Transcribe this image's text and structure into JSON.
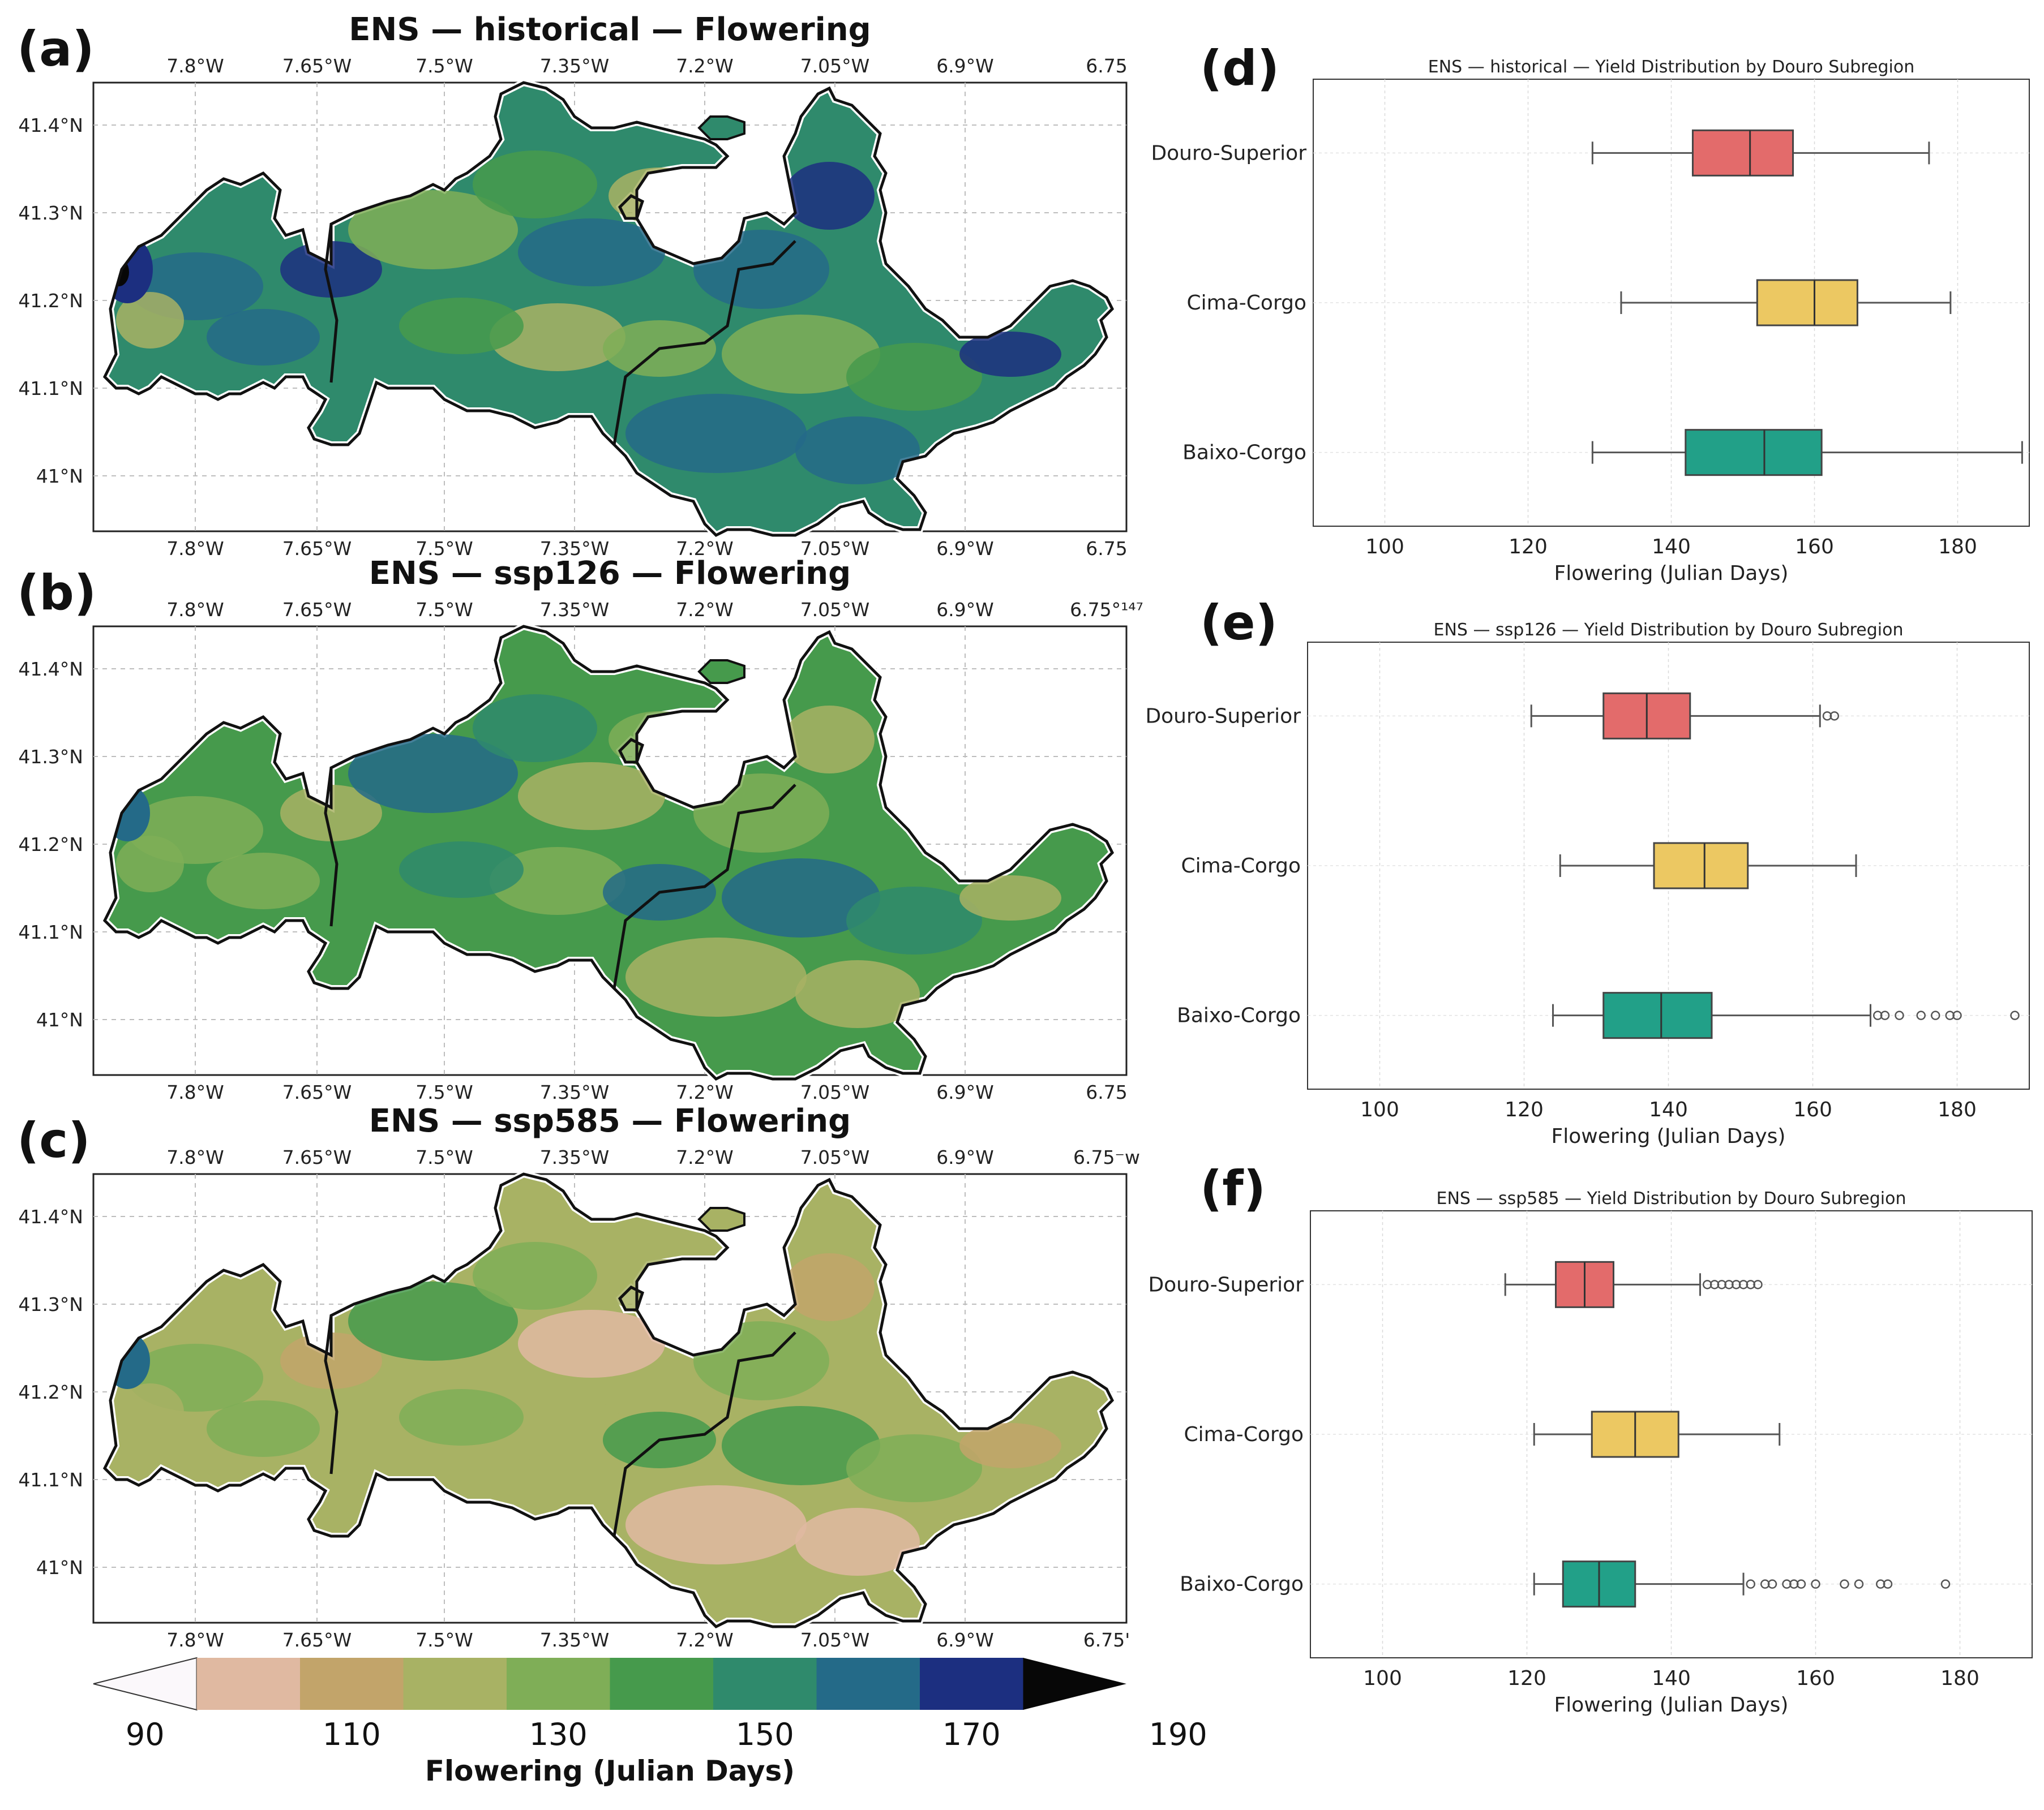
{
  "colors": {
    "c90_100": "#fbf8fb",
    "c100_110": "#e0b9a1",
    "c110_120": "#c2a46a",
    "c120_130": "#a8b264",
    "c130_140": "#7fae57",
    "c140_150": "#469a4c",
    "c150_160": "#2f8a6c",
    "c160_170": "#246a88",
    "c170_180": "#1c2f80",
    "c180_190": "#070707",
    "douro_superior": "#e36b6b",
    "cima_corgo": "#ecc862",
    "baixo_corgo": "#22a088"
  },
  "maps": [
    {
      "letter": "(a)",
      "title": "ENS — historical — Flowering",
      "top_ticks": [
        "7.8°W",
        "7.65°W",
        "7.5°W",
        "7.35°W",
        "7.2°W",
        "7.05°W",
        "6.9°W",
        "6.75"
      ],
      "bottom_ticks": [
        "7.8°W",
        "7.65°W",
        "7.5°W",
        "7.35°W",
        "7.2°W",
        "7.05°W",
        "6.9°W",
        "6.75"
      ],
      "lat_ticks": [
        "41.4°N",
        "41.3°N",
        "41.2°N",
        "41.1°N",
        "41°N"
      ],
      "scenario": "historical"
    },
    {
      "letter": "(b)",
      "title": "ENS — ssp126 — Flowering",
      "top_ticks": [
        "7.8°W",
        "7.65°W",
        "7.5°W",
        "7.35°W",
        "7.2°W",
        "7.05°W",
        "6.9°W",
        "6.75°¹⁴⁷"
      ],
      "bottom_ticks": [
        "7.8°W",
        "7.65°W",
        "7.5°W",
        "7.35°W",
        "7.2°W",
        "7.05°W",
        "6.9°W",
        "6.75"
      ],
      "lat_ticks": [
        "41.4°N",
        "41.3°N",
        "41.2°N",
        "41.1°N",
        "41°N"
      ],
      "scenario": "ssp126"
    },
    {
      "letter": "(c)",
      "title": "ENS — ssp585 — Flowering",
      "top_ticks": [
        "7.8°W",
        "7.65°W",
        "7.5°W",
        "7.35°W",
        "7.2°W",
        "7.05°W",
        "6.9°W",
        "6.75⁻w"
      ],
      "bottom_ticks": [
        "7.8°W",
        "7.65°W",
        "7.5°W",
        "7.35°W",
        "7.2°W",
        "7.05°W",
        "6.9°W",
        "6.75'"
      ],
      "lat_ticks": [
        "41.4°N",
        "41.3°N",
        "41.2°N",
        "41.1°N",
        "41°N"
      ],
      "scenario": "ssp585"
    }
  ],
  "colorbar": {
    "ticks": [
      "90",
      "110",
      "130",
      "150",
      "170",
      "190"
    ],
    "label": "Flowering (Julian Days)"
  },
  "chart_data": [
    {
      "type": "box",
      "letter": "(d)",
      "title": "ENS — historical — Yield Distribution by Douro Subregion",
      "xlabel": "Flowering (Julian Days)",
      "xlim": [
        90,
        190
      ],
      "xticks": [
        "100",
        "120",
        "140",
        "160",
        "180"
      ],
      "categories": [
        "Douro-Superior",
        "Cima-Corgo",
        "Baixo-Corgo"
      ],
      "boxes": [
        {
          "name": "Douro-Superior",
          "whislo": 129,
          "q1": 143,
          "med": 151,
          "q3": 157,
          "whishi": 176,
          "fliers": []
        },
        {
          "name": "Cima-Corgo",
          "whislo": 133,
          "q1": 152,
          "med": 160,
          "q3": 166,
          "whishi": 179,
          "fliers": []
        },
        {
          "name": "Baixo-Corgo",
          "whislo": 129,
          "q1": 142,
          "med": 153,
          "q3": 161,
          "whishi": 189,
          "fliers": []
        }
      ]
    },
    {
      "type": "box",
      "letter": "(e)",
      "title": "ENS — ssp126 — Yield Distribution by Douro Subregion",
      "xlabel": "Flowering (Julian Days)",
      "xlim": [
        90,
        190
      ],
      "xticks": [
        "100",
        "120",
        "140",
        "160",
        "180"
      ],
      "categories": [
        "Douro-Superior",
        "Cima-Corgo",
        "Baixo-Corgo"
      ],
      "boxes": [
        {
          "name": "Douro-Superior",
          "whislo": 121,
          "q1": 131,
          "med": 137,
          "q3": 143,
          "whishi": 161,
          "fliers": [
            162,
            163
          ]
        },
        {
          "name": "Cima-Corgo",
          "whislo": 125,
          "q1": 138,
          "med": 145,
          "q3": 151,
          "whishi": 166,
          "fliers": []
        },
        {
          "name": "Baixo-Corgo",
          "whislo": 124,
          "q1": 131,
          "med": 139,
          "q3": 146,
          "whishi": 168,
          "fliers": [
            169,
            170,
            172,
            175,
            177,
            179,
            180,
            188
          ]
        }
      ]
    },
    {
      "type": "box",
      "letter": "(f)",
      "title": "ENS — ssp585 — Yield Distribution by Douro Subregion",
      "xlabel": "Flowering (Julian Days)",
      "xlim": [
        90,
        190
      ],
      "xticks": [
        "100",
        "120",
        "140",
        "160",
        "180"
      ],
      "categories": [
        "Douro-Superior",
        "Cima-Corgo",
        "Baixo-Corgo"
      ],
      "boxes": [
        {
          "name": "Douro-Superior",
          "whislo": 117,
          "q1": 124,
          "med": 128,
          "q3": 132,
          "whishi": 144,
          "fliers": [
            145,
            146,
            147,
            148,
            149,
            150,
            151,
            152
          ]
        },
        {
          "name": "Cima-Corgo",
          "whislo": 121,
          "q1": 129,
          "med": 135,
          "q3": 141,
          "whishi": 155,
          "fliers": []
        },
        {
          "name": "Baixo-Corgo",
          "whislo": 121,
          "q1": 125,
          "med": 130,
          "q3": 135,
          "whishi": 150,
          "fliers": [
            151,
            153,
            154,
            156,
            157,
            158,
            160,
            164,
            166,
            169,
            170,
            178
          ]
        }
      ]
    }
  ]
}
